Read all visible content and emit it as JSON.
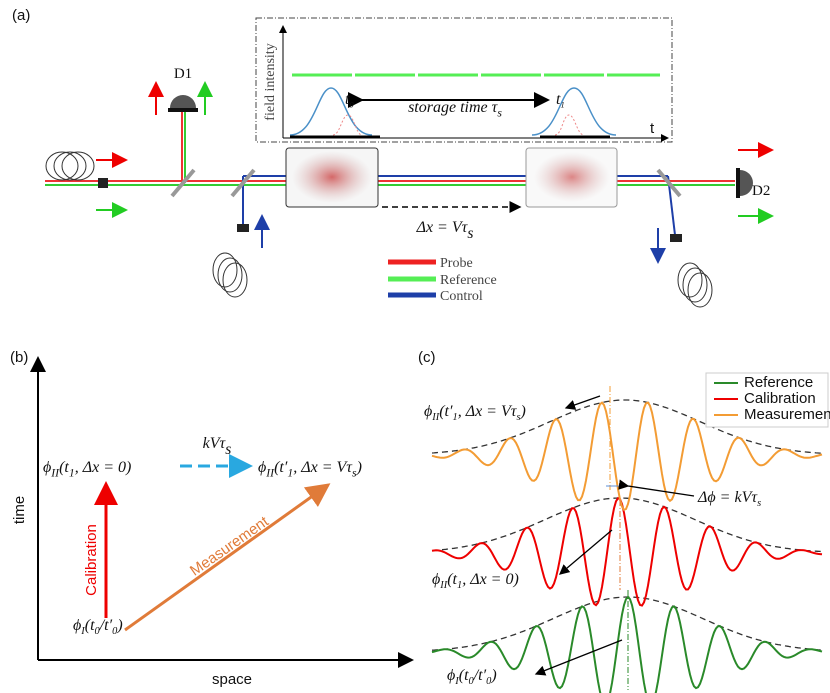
{
  "panel_a": {
    "label": "(a)",
    "detector_1": "D1",
    "detector_2": "D2",
    "inset": {
      "y_label": "field intensity",
      "t0": [
        "t",
        "0"
      ],
      "t1": [
        "t",
        "1"
      ],
      "storage": [
        "storage time τ",
        "s"
      ],
      "x_label": "t"
    },
    "displacement": [
      "Δx = Vτ",
      "s"
    ],
    "legend": [
      "Probe",
      "Reference",
      "Control"
    ]
  },
  "panel_b": {
    "label": "(b)",
    "y_label": "time",
    "x_label": "space",
    "phase_shift": [
      "kVτ",
      "s"
    ],
    "state_calibration": [
      "ϕ",
      "II",
      "(t",
      "1",
      ", Δx = 0)"
    ],
    "state_measurement": [
      "ϕ",
      "II",
      "(t′",
      "1",
      ", Δx = Vτ",
      "s",
      ")"
    ],
    "state_initial": [
      "ϕ",
      "I",
      "(t",
      "0",
      "/t′",
      "0",
      ")"
    ],
    "arrow_calibration": "Calibration",
    "arrow_measurement": "Measurement"
  },
  "panel_c": {
    "label": "(c)",
    "legend": [
      "Reference",
      "Calibration",
      "Measurement"
    ],
    "label_measurement": [
      "ϕ",
      "II",
      "(t′",
      "1",
      ", Δx = Vτ",
      "s",
      ")"
    ],
    "label_difference": [
      "Δϕ = kVτ",
      "s"
    ],
    "label_calibration": [
      "ϕ",
      "II",
      "(t",
      "1",
      ", Δx = 0)"
    ],
    "label_reference": [
      "ϕ",
      "I",
      "(t",
      "0",
      "/t′",
      "0",
      ")"
    ]
  }
}
